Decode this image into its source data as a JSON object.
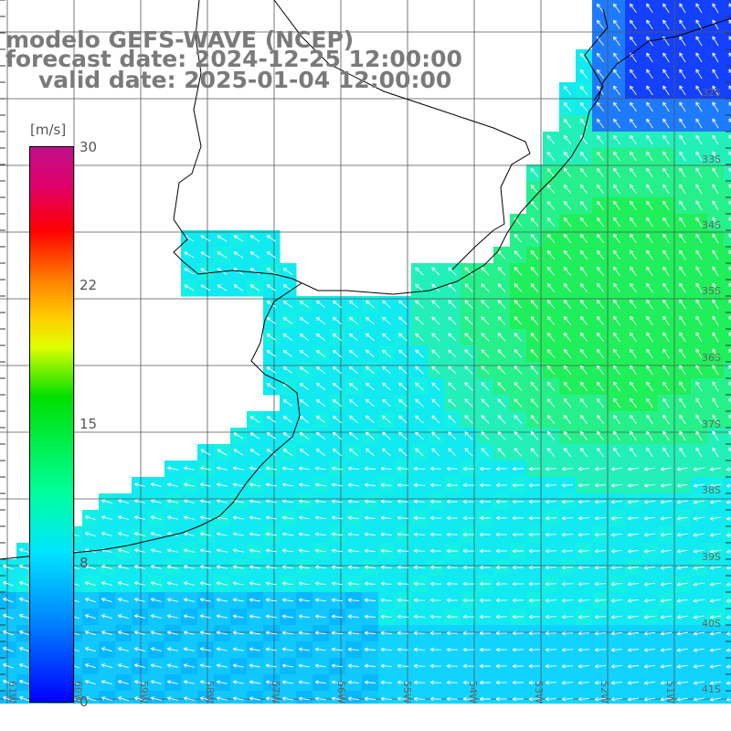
{
  "title": {
    "model": "modelo GEFS-WAVE (NCEP)",
    "forecast": "forecast date: 2024-12-25 12:00:00",
    "valid": "valid date: 2025-01-04 12:00:00"
  },
  "colorbar": {
    "unit": "[m/s]",
    "ticks": [
      "30",
      "22",
      "15",
      "8",
      "0"
    ],
    "colors": [
      "#0000ff",
      "#0080ff",
      "#00e5ff",
      "#00ff99",
      "#00e000",
      "#e0ff00",
      "#ffd000",
      "#ff8000",
      "#ff0000",
      "#e0006a",
      "#c0108a"
    ]
  },
  "axes": {
    "lon_labels": [
      "61W",
      "60W",
      "59W",
      "58W",
      "57W",
      "56W",
      "55W",
      "54W",
      "53W",
      "52W",
      "51W"
    ],
    "lat_labels": [
      "32S",
      "33S",
      "34S",
      "35S",
      "36S",
      "37S",
      "38S",
      "39S",
      "40S",
      "41S"
    ]
  }
}
